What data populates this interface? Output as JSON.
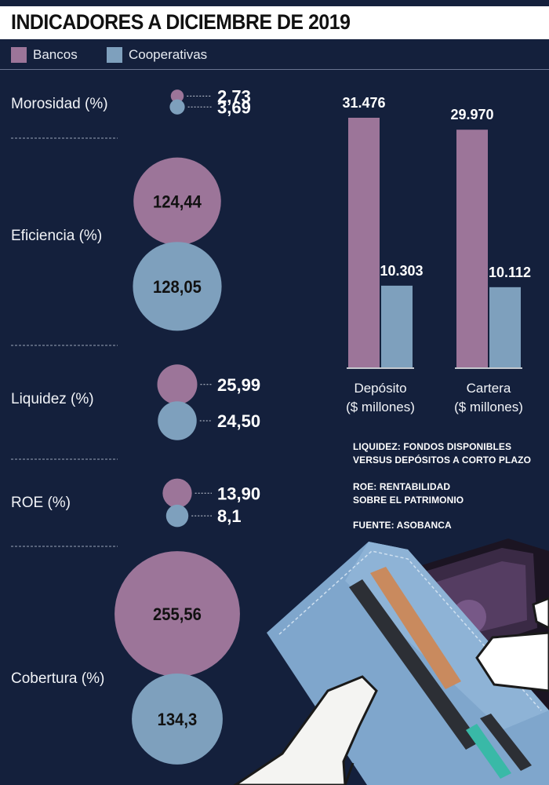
{
  "title": "INDICADORES A DICIEMBRE DE 2019",
  "colors": {
    "bancos": "#9c7599",
    "cooperativas": "#7ea0bd",
    "background": "#14203c"
  },
  "legend": [
    {
      "label": "Bancos",
      "color": "#9c7599"
    },
    {
      "label": "Cooperativas",
      "color": "#7ea0bd"
    }
  ],
  "chart_data": [
    {
      "type": "bubble",
      "series_names": [
        "Bancos",
        "Cooperativas"
      ],
      "indicators": [
        {
          "label": "Morosidad (%)",
          "bancos": 2.73,
          "cooperativas": 3.69,
          "bancos_label": "2,73",
          "cooperativas_label": "3,69"
        },
        {
          "label": "Eficiencia (%)",
          "bancos": 124.44,
          "cooperativas": 128.05,
          "bancos_label": "124,44",
          "cooperativas_label": "128,05"
        },
        {
          "label": "Liquidez (%)",
          "bancos": 25.99,
          "cooperativas": 24.5,
          "bancos_label": "25,99",
          "cooperativas_label": "24,50"
        },
        {
          "label": "ROE (%)",
          "bancos": 13.9,
          "cooperativas": 8.1,
          "bancos_label": "13,90",
          "cooperativas_label": "8,1"
        },
        {
          "label": "Cobertura (%)",
          "bancos": 255.56,
          "cooperativas": 134.3,
          "bancos_label": "255,56",
          "cooperativas_label": "134,3"
        }
      ]
    },
    {
      "type": "bar",
      "categories": [
        "Depósito\n($ millones)",
        "Cartera\n($ millones)"
      ],
      "series": [
        {
          "name": "Bancos",
          "values": [
            31476,
            29970
          ],
          "labels": [
            "31.476",
            "29.970"
          ]
        },
        {
          "name": "Cooperativas",
          "values": [
            10303,
            10112
          ],
          "labels": [
            "10.303",
            "10.112"
          ]
        }
      ]
    }
  ],
  "notes": [
    "LIQUIDEZ: FONDOS DISPONIBLES\nVERSUS DEPÓSITOS A CORTO PLAZO",
    "ROE: RENTABILIDAD\nSOBRE EL PATRIMONIO",
    "FUENTE: ASOBANCA"
  ]
}
